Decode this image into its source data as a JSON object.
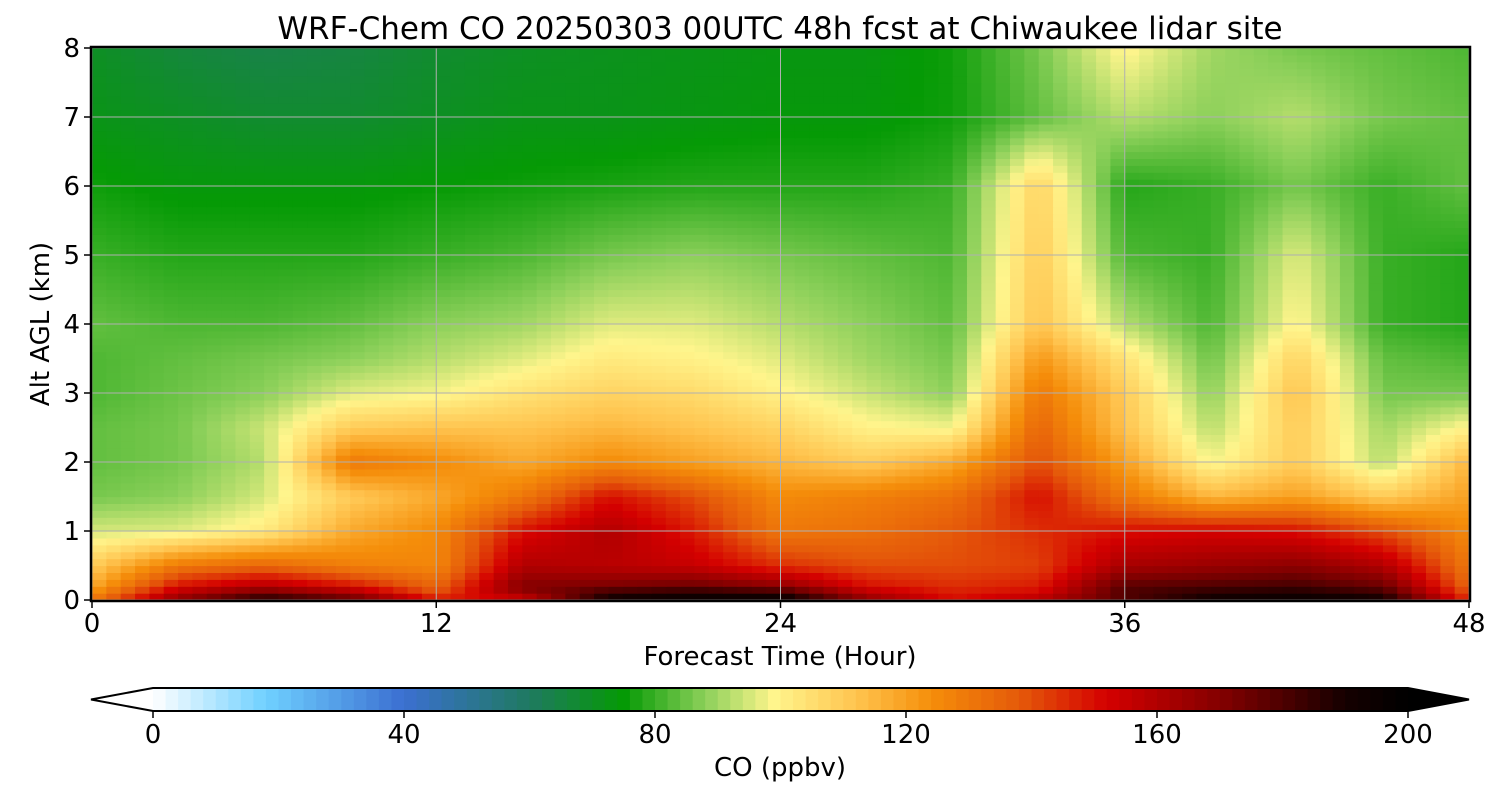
{
  "chart_data": {
    "type": "heatmap",
    "title": "WRF-Chem CO  20250303 00UTC 48h fcst at Chiwaukee lidar site",
    "xlabel": "Forecast Time (Hour)",
    "ylabel": "Alt AGL (km)",
    "xlim": [
      0,
      48
    ],
    "ylim": [
      0,
      8
    ],
    "x_ticks": [
      0,
      12,
      24,
      36,
      48
    ],
    "y_ticks": [
      0,
      1,
      2,
      3,
      4,
      5,
      6,
      7,
      8
    ],
    "grid": true,
    "colorbar": {
      "label": "CO  (ppbv)",
      "min": 0,
      "max": 200,
      "ticks": [
        0,
        40,
        80,
        120,
        160,
        200
      ],
      "extend": "both",
      "orientation": "horizontal",
      "stops": [
        {
          "v": 0,
          "c": "#ffffff"
        },
        {
          "v": 18,
          "c": "#6fd0ff"
        },
        {
          "v": 40,
          "c": "#3b6fd1"
        },
        {
          "v": 60,
          "c": "#1f7a60"
        },
        {
          "v": 75,
          "c": "#059a05"
        },
        {
          "v": 88,
          "c": "#8cd05a"
        },
        {
          "v": 99,
          "c": "#fff58c"
        },
        {
          "v": 112,
          "c": "#ffc44f"
        },
        {
          "v": 124,
          "c": "#f58e0a"
        },
        {
          "v": 138,
          "c": "#e55a0a"
        },
        {
          "v": 152,
          "c": "#d40000"
        },
        {
          "v": 172,
          "c": "#7a0000"
        },
        {
          "v": 190,
          "c": "#150000"
        },
        {
          "v": 200,
          "c": "#000000"
        }
      ]
    },
    "grid_x_hours": [
      0,
      3,
      6,
      9,
      12,
      15,
      18,
      21,
      24,
      27,
      30,
      33,
      36,
      39,
      42,
      45,
      48
    ],
    "grid_y_km": [
      0,
      0.1,
      0.2,
      0.5,
      1,
      1.5,
      2,
      2.5,
      3,
      3.5,
      4,
      5,
      6,
      7,
      8
    ],
    "values_ppbv": [
      [
        130,
        168,
        190,
        178,
        150,
        150,
        192,
        196,
        196,
        168,
        150,
        160,
        178,
        192,
        196,
        192,
        145
      ],
      [
        125,
        160,
        176,
        165,
        140,
        165,
        186,
        190,
        188,
        160,
        148,
        152,
        180,
        188,
        190,
        185,
        140
      ],
      [
        118,
        150,
        160,
        150,
        135,
        170,
        172,
        175,
        168,
        150,
        145,
        148,
        178,
        180,
        182,
        175,
        135
      ],
      [
        110,
        130,
        135,
        128,
        126,
        160,
        158,
        155,
        145,
        140,
        140,
        142,
        162,
        165,
        168,
        160,
        130
      ],
      [
        95,
        96,
        102,
        118,
        125,
        150,
        160,
        148,
        130,
        132,
        138,
        145,
        150,
        152,
        150,
        140,
        125
      ],
      [
        86,
        88,
        95,
        110,
        118,
        130,
        150,
        140,
        125,
        128,
        132,
        150,
        130,
        115,
        120,
        110,
        120
      ],
      [
        84,
        86,
        92,
        130,
        125,
        118,
        125,
        120,
        115,
        110,
        118,
        140,
        120,
        98,
        110,
        92,
        115
      ],
      [
        84,
        86,
        94,
        110,
        112,
        112,
        115,
        112,
        108,
        100,
        98,
        135,
        112,
        92,
        110,
        90,
        100
      ],
      [
        82,
        85,
        88,
        96,
        98,
        104,
        108,
        106,
        100,
        94,
        88,
        130,
        110,
        88,
        112,
        86,
        86
      ],
      [
        82,
        84,
        86,
        88,
        92,
        96,
        102,
        100,
        96,
        90,
        86,
        122,
        104,
        85,
        108,
        84,
        82
      ],
      [
        84,
        82,
        82,
        84,
        88,
        90,
        96,
        96,
        92,
        88,
        84,
        112,
        92,
        82,
        100,
        80,
        78
      ],
      [
        80,
        78,
        78,
        78,
        80,
        82,
        86,
        88,
        86,
        84,
        82,
        110,
        82,
        80,
        96,
        80,
        78
      ],
      [
        76,
        74,
        74,
        74,
        75,
        76,
        77,
        78,
        78,
        78,
        80,
        108,
        78,
        80,
        86,
        80,
        84
      ],
      [
        72,
        70,
        68,
        68,
        70,
        72,
        72,
        73,
        74,
        74,
        76,
        84,
        92,
        88,
        92,
        86,
        84
      ],
      [
        70,
        66,
        64,
        65,
        68,
        70,
        71,
        72,
        73,
        73,
        76,
        86,
        100,
        90,
        86,
        84,
        82
      ]
    ]
  }
}
